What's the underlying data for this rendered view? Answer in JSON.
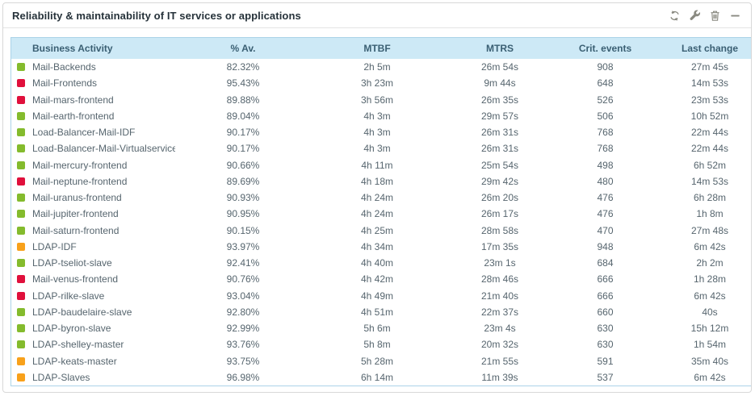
{
  "panel": {
    "title": "Reliability & maintainability of IT services or applications",
    "toolbar": [
      {
        "name": "refresh",
        "icon": "refresh-icon"
      },
      {
        "name": "configure",
        "icon": "wrench-icon"
      },
      {
        "name": "delete",
        "icon": "trash-icon"
      },
      {
        "name": "minimize",
        "icon": "minus-icon"
      }
    ]
  },
  "colors": {
    "status": {
      "green": "#84bb2d",
      "red": "#e0103c",
      "orange": "#f8a11b"
    },
    "header_bg": "#cde9f6",
    "header_text": "#3a5f73",
    "row_text": "#56656e",
    "table_border": "#abd3e8",
    "icon": "#8a8a81"
  },
  "table": {
    "columns": [
      {
        "key": "activity",
        "label": "Business Activity"
      },
      {
        "key": "availability",
        "label": "% Av."
      },
      {
        "key": "mtbf",
        "label": "MTBF"
      },
      {
        "key": "mtrs",
        "label": "MTRS"
      },
      {
        "key": "crit_events",
        "label": "Crit. events"
      },
      {
        "key": "last_change",
        "label": "Last change"
      }
    ],
    "rows": [
      {
        "status": "green",
        "activity": "Mail-Backends",
        "availability": "82.32%",
        "mtbf": "2h 5m",
        "mtrs": "26m 54s",
        "crit_events": "908",
        "last_change": "27m 45s"
      },
      {
        "status": "red",
        "activity": "Mail-Frontends",
        "availability": "95.43%",
        "mtbf": "3h 23m",
        "mtrs": "9m 44s",
        "crit_events": "648",
        "last_change": "14m 53s"
      },
      {
        "status": "red",
        "activity": "Mail-mars-frontend",
        "availability": "89.88%",
        "mtbf": "3h 56m",
        "mtrs": "26m 35s",
        "crit_events": "526",
        "last_change": "23m 53s"
      },
      {
        "status": "green",
        "activity": "Mail-earth-frontend",
        "availability": "89.04%",
        "mtbf": "4h 3m",
        "mtrs": "29m 57s",
        "crit_events": "506",
        "last_change": "10h 52m"
      },
      {
        "status": "green",
        "activity": "Load-Balancer-Mail-IDF",
        "availability": "90.17%",
        "mtbf": "4h 3m",
        "mtrs": "26m 31s",
        "crit_events": "768",
        "last_change": "22m 44s"
      },
      {
        "status": "green",
        "activity": "Load-Balancer-Mail-Virtualservice",
        "availability": "90.17%",
        "mtbf": "4h 3m",
        "mtrs": "26m 31s",
        "crit_events": "768",
        "last_change": "22m 44s"
      },
      {
        "status": "green",
        "activity": "Mail-mercury-frontend",
        "availability": "90.66%",
        "mtbf": "4h 11m",
        "mtrs": "25m 54s",
        "crit_events": "498",
        "last_change": "6h 52m"
      },
      {
        "status": "red",
        "activity": "Mail-neptune-frontend",
        "availability": "89.69%",
        "mtbf": "4h 18m",
        "mtrs": "29m 42s",
        "crit_events": "480",
        "last_change": "14m 53s"
      },
      {
        "status": "green",
        "activity": "Mail-uranus-frontend",
        "availability": "90.93%",
        "mtbf": "4h 24m",
        "mtrs": "26m 20s",
        "crit_events": "476",
        "last_change": "6h 28m"
      },
      {
        "status": "green",
        "activity": "Mail-jupiter-frontend",
        "availability": "90.95%",
        "mtbf": "4h 24m",
        "mtrs": "26m 17s",
        "crit_events": "476",
        "last_change": "1h 8m"
      },
      {
        "status": "green",
        "activity": "Mail-saturn-frontend",
        "availability": "90.15%",
        "mtbf": "4h 25m",
        "mtrs": "28m 58s",
        "crit_events": "470",
        "last_change": "27m 48s"
      },
      {
        "status": "orange",
        "activity": "LDAP-IDF",
        "availability": "93.97%",
        "mtbf": "4h 34m",
        "mtrs": "17m 35s",
        "crit_events": "948",
        "last_change": "6m 42s"
      },
      {
        "status": "green",
        "activity": "LDAP-tseliot-slave",
        "availability": "92.41%",
        "mtbf": "4h 40m",
        "mtrs": "23m 1s",
        "crit_events": "684",
        "last_change": "2h 2m"
      },
      {
        "status": "red",
        "activity": "Mail-venus-frontend",
        "availability": "90.76%",
        "mtbf": "4h 42m",
        "mtrs": "28m 46s",
        "crit_events": "666",
        "last_change": "1h 28m"
      },
      {
        "status": "red",
        "activity": "LDAP-rilke-slave",
        "availability": "93.04%",
        "mtbf": "4h 49m",
        "mtrs": "21m 40s",
        "crit_events": "666",
        "last_change": "6m 42s"
      },
      {
        "status": "green",
        "activity": "LDAP-baudelaire-slave",
        "availability": "92.80%",
        "mtbf": "4h 51m",
        "mtrs": "22m 37s",
        "crit_events": "660",
        "last_change": "40s"
      },
      {
        "status": "green",
        "activity": "LDAP-byron-slave",
        "availability": "92.99%",
        "mtbf": "5h 6m",
        "mtrs": "23m 4s",
        "crit_events": "630",
        "last_change": "15h 12m"
      },
      {
        "status": "green",
        "activity": "LDAP-shelley-master",
        "availability": "93.76%",
        "mtbf": "5h 8m",
        "mtrs": "20m 32s",
        "crit_events": "630",
        "last_change": "1h 54m"
      },
      {
        "status": "orange",
        "activity": "LDAP-keats-master",
        "availability": "93.75%",
        "mtbf": "5h 28m",
        "mtrs": "21m 55s",
        "crit_events": "591",
        "last_change": "35m 40s"
      },
      {
        "status": "orange",
        "activity": "LDAP-Slaves",
        "availability": "96.98%",
        "mtbf": "6h 14m",
        "mtrs": "11m 39s",
        "crit_events": "537",
        "last_change": "6m 42s"
      }
    ]
  }
}
